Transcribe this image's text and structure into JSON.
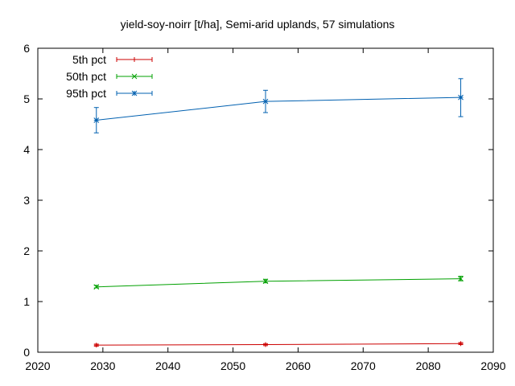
{
  "chart_data": {
    "type": "line",
    "title": "yield-soy-noirr [t/ha], Semi-arid uplands, 57 simulations",
    "xlabel": "",
    "ylabel": "",
    "xlim": [
      2020,
      2090
    ],
    "ylim": [
      0,
      6
    ],
    "xticks": [
      2020,
      2030,
      2040,
      2050,
      2060,
      2070,
      2080,
      2090
    ],
    "yticks": [
      0,
      1,
      2,
      3,
      4,
      5,
      6
    ],
    "grid": false,
    "legend_position": "top-left",
    "series": [
      {
        "name": "5th pct",
        "color": "#cc0000",
        "marker": "plus",
        "x": [
          2029,
          2055,
          2085
        ],
        "y": [
          0.14,
          0.15,
          0.17
        ],
        "err_low": [
          0.12,
          0.13,
          0.15
        ],
        "err_high": [
          0.16,
          0.17,
          0.19
        ]
      },
      {
        "name": "50th pct",
        "color": "#00a000",
        "marker": "cross",
        "x": [
          2029,
          2055,
          2085
        ],
        "y": [
          1.29,
          1.4,
          1.45
        ],
        "err_low": [
          1.27,
          1.37,
          1.41
        ],
        "err_high": [
          1.32,
          1.44,
          1.5
        ]
      },
      {
        "name": "95th pct",
        "color": "#0060b0",
        "marker": "star",
        "x": [
          2029,
          2055,
          2085
        ],
        "y": [
          4.58,
          4.95,
          5.03
        ],
        "err_low": [
          4.33,
          4.73,
          4.65
        ],
        "err_high": [
          4.83,
          5.17,
          5.4
        ]
      }
    ]
  }
}
